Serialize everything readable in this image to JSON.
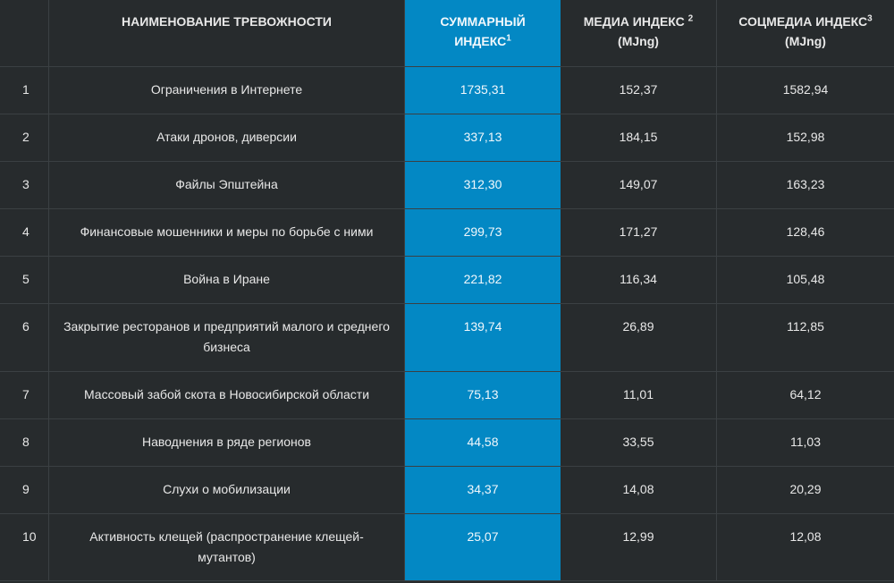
{
  "header": {
    "name": "НАИМЕНОВАНИЕ ТРЕВОЖНОСТИ",
    "sum_line1": "СУММАРНЫЙ",
    "sum_line2": "ИНДЕКС",
    "sum_sup": "1",
    "media": "МЕДИА ИНДЕКС",
    "media_sup": "2",
    "media_unit": "(MJng)",
    "social": "СОЦМЕДИА ИНДЕКС",
    "social_sup": "3",
    "social_unit": "(MJng)"
  },
  "rows": [
    {
      "num": "1",
      "name": "Ограничения в Интернете",
      "sum": "1735,31",
      "media": "152,37",
      "social": "1582,94"
    },
    {
      "num": "2",
      "name": "Атаки дронов, диверсии",
      "sum": "337,13",
      "media": "184,15",
      "social": "152,98"
    },
    {
      "num": "3",
      "name": "Файлы Эпштейна",
      "sum": "312,30",
      "media": "149,07",
      "social": "163,23"
    },
    {
      "num": "4",
      "name": "Финансовые мошенники и меры по борьбе с ними",
      "sum": "299,73",
      "media": "171,27",
      "social": "128,46"
    },
    {
      "num": "5",
      "name": "Война в Иране",
      "sum": "221,82",
      "media": "116,34",
      "social": "105,48"
    },
    {
      "num": "6",
      "name": "Закрытие ресторанов и предприятий малого и среднего бизнеса",
      "sum": "139,74",
      "media": "26,89",
      "social": "112,85"
    },
    {
      "num": "7",
      "name": "Массовый забой скота в Новосибирской области",
      "sum": "75,13",
      "media": "11,01",
      "social": "64,12"
    },
    {
      "num": "8",
      "name": "Наводнения в ряде регионов",
      "sum": "44,58",
      "media": "33,55",
      "social": "11,03"
    },
    {
      "num": "9",
      "name": "Слухи о мобилизации",
      "sum": "34,37",
      "media": "14,08",
      "social": "20,29"
    },
    {
      "num": "10",
      "name": "Активность клещей (распространение клещей-мутантов)",
      "sum": "25,07",
      "media": "12,99",
      "social": "12,08"
    }
  ]
}
